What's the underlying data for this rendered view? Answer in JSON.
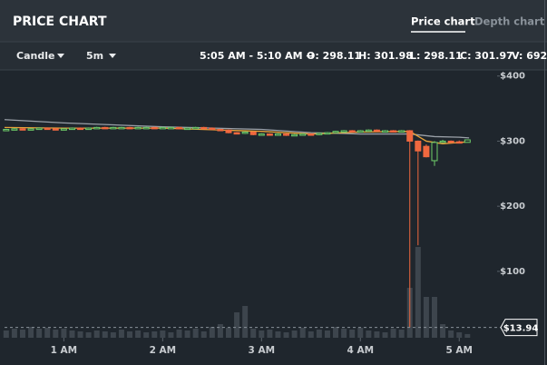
{
  "header": {
    "title": "PRICE CHART",
    "tabs": [
      "Price chart",
      "Depth chart"
    ]
  },
  "toolbar": {
    "chart_type": "Candle",
    "interval": "5m",
    "range": "5:05 AM - 5:10 AM →",
    "open": "O: 298.11",
    "high": "H: 301.98",
    "low": "L: 298.11",
    "close": "C: 301.97",
    "volume": "V: 692"
  },
  "chart_data": {
    "type": "candlestick",
    "x": [
      25,
      30,
      35,
      40,
      45,
      50,
      55,
      60,
      65,
      70,
      75,
      80,
      85,
      90,
      95,
      100,
      105,
      110,
      115,
      120,
      125,
      130,
      135,
      140,
      145,
      150,
      155,
      160,
      165,
      170,
      175,
      180,
      185,
      190,
      195,
      200,
      205,
      210,
      215,
      220,
      225,
      230,
      235,
      240,
      245,
      250,
      255,
      260,
      265,
      270,
      275,
      280,
      285,
      290,
      295,
      300,
      305
    ],
    "open": [
      317,
      318,
      319,
      318,
      319,
      320,
      319,
      318,
      319,
      320,
      319,
      320,
      321,
      320,
      321,
      321,
      320,
      321,
      321,
      320,
      321,
      321,
      320,
      320,
      321,
      320,
      318,
      317,
      313,
      312,
      314,
      310,
      311,
      310,
      311,
      309,
      310,
      311,
      310,
      312,
      313,
      315,
      316,
      315,
      316,
      317,
      316,
      316,
      315,
      316,
      300,
      292,
      270,
      298,
      300,
      299,
      298.11
    ],
    "high": [
      319,
      320,
      320,
      320,
      321,
      321,
      320,
      320,
      321,
      321,
      321,
      322,
      322,
      322,
      322,
      322,
      322,
      322,
      322,
      322,
      322,
      322,
      321,
      322,
      322,
      321,
      319,
      318,
      314,
      315,
      315,
      312,
      312,
      312,
      312,
      311,
      312,
      312,
      313,
      314,
      316,
      317,
      317,
      317,
      318,
      318,
      317,
      317,
      317,
      317,
      301,
      295,
      300,
      302,
      301,
      301,
      301.98
    ],
    "low": [
      316,
      317,
      317,
      317,
      318,
      318,
      317,
      317,
      318,
      318,
      318,
      319,
      319,
      319,
      320,
      319,
      319,
      320,
      319,
      319,
      320,
      319,
      319,
      319,
      319,
      317,
      316,
      312,
      311,
      311,
      309,
      309,
      309,
      309,
      308,
      308,
      309,
      309,
      309,
      311,
      312,
      314,
      314,
      314,
      315,
      315,
      315,
      314,
      314,
      13.94,
      140,
      275,
      262,
      297,
      298,
      297,
      298.11
    ],
    "close": [
      318,
      319,
      318,
      319,
      320,
      319,
      318,
      319,
      320,
      319,
      320,
      321,
      320,
      321,
      321,
      320,
      321,
      321,
      320,
      321,
      321,
      320,
      320,
      321,
      320,
      318,
      317,
      313,
      312,
      314,
      310,
      311,
      310,
      311,
      309,
      310,
      311,
      310,
      312,
      313,
      315,
      316,
      315,
      316,
      317,
      316,
      316,
      315,
      316,
      300,
      285,
      276,
      298,
      300,
      299,
      298,
      301.97
    ],
    "volume": [
      1360,
      1700,
      1530,
      2040,
      1700,
      1870,
      1530,
      1700,
      1360,
      1190,
      1020,
      1360,
      1190,
      1020,
      1530,
      1190,
      1360,
      1020,
      1190,
      1360,
      1020,
      1530,
      1360,
      1700,
      1190,
      2040,
      2550,
      1870,
      4760,
      5950,
      1700,
      1360,
      1530,
      1190,
      1020,
      1360,
      1870,
      1190,
      1530,
      1360,
      2040,
      1700,
      1530,
      1870,
      1360,
      1190,
      1020,
      1700,
      1530,
      9350,
      17000,
      7650,
      7650,
      2550,
      1360,
      1020,
      692
    ],
    "up_color": "#6fcf6a",
    "down_color": "#f0683f",
    "volume_color": "#3d454d",
    "overlays": [
      {
        "color": "#9aa0a8",
        "x": [
          24,
          60,
          120,
          180,
          210,
          240,
          270,
          285,
          300,
          306
        ],
        "values": [
          333,
          328,
          322,
          318,
          313,
          311,
          311,
          307,
          306,
          305
        ]
      },
      {
        "color": "#e8a23a",
        "x": [
          24,
          60,
          120,
          180,
          210,
          240,
          270,
          280,
          290,
          306
        ],
        "values": [
          321,
          320,
          320,
          315,
          311,
          314,
          315,
          300,
          296,
          299
        ]
      }
    ],
    "marker": {
      "value": 13.94,
      "label": "$13.94"
    },
    "xlim": [
      24,
      323
    ],
    "ylim": [
      -2,
      408
    ],
    "xticks": [
      {
        "value": 60,
        "label": "1 AM"
      },
      {
        "value": 120,
        "label": "2 AM"
      },
      {
        "value": 180,
        "label": "3 AM"
      },
      {
        "value": 240,
        "label": "4 AM"
      },
      {
        "value": 300,
        "label": "5 AM"
      }
    ],
    "yticks": [
      {
        "value": 100,
        "label": "$100"
      },
      {
        "value": 200,
        "label": "$200"
      },
      {
        "value": 300,
        "label": "$300"
      },
      {
        "value": 400,
        "label": "$400"
      }
    ]
  }
}
